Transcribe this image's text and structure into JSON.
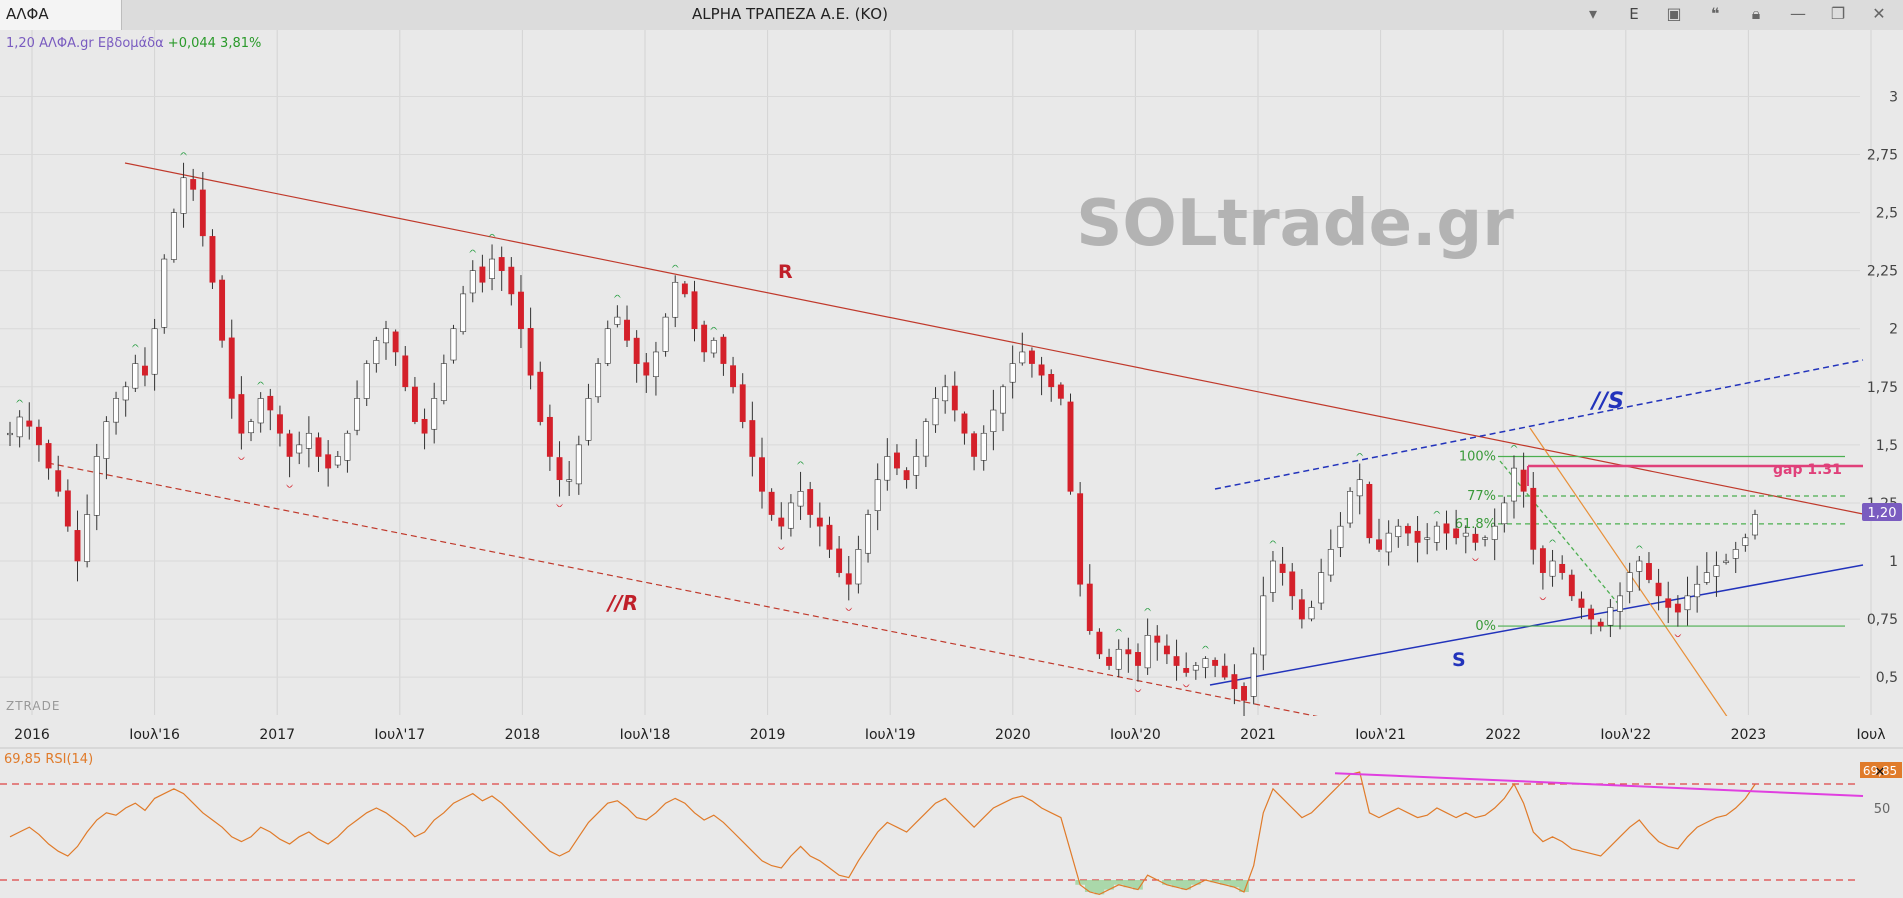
{
  "titlebar": {
    "symbol": "ΑΛΦΑ",
    "title": "ALPHA ΤΡΑΠΕΖΑ Α.Ε. (ΚΟ)",
    "lang_button": "E"
  },
  "colors": {
    "background": "#e9e9e9",
    "up": "#ffffff",
    "down": "#d4202a",
    "resistance": "#c0392b",
    "support": "#2233bb",
    "fib": "#4caf50",
    "gap": "#e0407a",
    "rsi": "#e07b2a",
    "rsi_trend": "#e040e0"
  },
  "chart_data": [
    {
      "type": "candlestick",
      "header": {
        "price": "1,20",
        "source": "ΑΛΦΑ.gr",
        "period": "Εβδομάδα",
        "change": "+0,044",
        "change_pct": "3,81%"
      },
      "watermark": "SOLtrade.gr",
      "branding": "ZTRADE",
      "x_ticks": [
        "2016",
        "Ιουλ'16",
        "2017",
        "Ιουλ'17",
        "2018",
        "Ιουλ'18",
        "2019",
        "Ιουλ'19",
        "2020",
        "Ιουλ'20",
        "2021",
        "Ιουλ'21",
        "2022",
        "Ιουλ'22",
        "2023",
        "Ιουλ"
      ],
      "y_ticks": [
        "3",
        "2,75",
        "2,5",
        "2,25",
        "2",
        "1,75",
        "1,5",
        "1,25",
        "1",
        "0,75",
        "0,5"
      ],
      "y_tick_values": [
        3,
        2.75,
        2.5,
        2.25,
        2,
        1.75,
        1.5,
        1.25,
        1,
        0.75,
        0.5
      ],
      "ylim": [
        0.35,
        3.2
      ],
      "last_price_label": "1,20",
      "close_series": [
        1.55,
        1.62,
        1.58,
        1.5,
        1.4,
        1.3,
        1.15,
        1.0,
        1.2,
        1.45,
        1.6,
        1.7,
        1.75,
        1.85,
        1.8,
        2.0,
        2.3,
        2.5,
        2.65,
        2.6,
        2.4,
        2.2,
        1.95,
        1.7,
        1.55,
        1.6,
        1.7,
        1.65,
        1.55,
        1.45,
        1.5,
        1.55,
        1.45,
        1.4,
        1.45,
        1.55,
        1.7,
        1.85,
        1.95,
        2.0,
        1.9,
        1.75,
        1.6,
        1.55,
        1.7,
        1.85,
        2.0,
        2.15,
        2.25,
        2.2,
        2.3,
        2.25,
        2.15,
        2.0,
        1.8,
        1.6,
        1.45,
        1.35,
        1.35,
        1.5,
        1.7,
        1.85,
        2.0,
        2.05,
        1.95,
        1.85,
        1.8,
        1.9,
        2.05,
        2.2,
        2.15,
        2.0,
        1.9,
        1.95,
        1.85,
        1.75,
        1.6,
        1.45,
        1.3,
        1.2,
        1.15,
        1.25,
        1.3,
        1.2,
        1.15,
        1.05,
        0.95,
        0.9,
        1.05,
        1.2,
        1.35,
        1.45,
        1.4,
        1.35,
        1.45,
        1.6,
        1.7,
        1.75,
        1.65,
        1.55,
        1.45,
        1.55,
        1.65,
        1.75,
        1.85,
        1.9,
        1.85,
        1.8,
        1.75,
        1.7,
        1.3,
        0.9,
        0.7,
        0.6,
        0.55,
        0.62,
        0.6,
        0.55,
        0.68,
        0.65,
        0.6,
        0.55,
        0.52,
        0.55,
        0.58,
        0.55,
        0.5,
        0.45,
        0.4,
        0.6,
        0.85,
        1.0,
        0.95,
        0.85,
        0.75,
        0.8,
        0.95,
        1.05,
        1.15,
        1.3,
        1.35,
        1.1,
        1.05,
        1.12,
        1.15,
        1.12,
        1.08,
        1.1,
        1.15,
        1.12,
        1.1,
        1.12,
        1.08,
        1.1,
        1.15,
        1.25,
        1.4,
        1.3,
        1.05,
        0.95,
        1.0,
        0.95,
        0.85,
        0.8,
        0.75,
        0.72,
        0.8,
        0.85,
        0.95,
        1.0,
        0.92,
        0.85,
        0.8,
        0.78,
        0.85,
        0.9,
        0.95,
        0.98,
        1.0,
        1.05,
        1.1,
        1.2
      ],
      "annotations": [
        {
          "text": "R",
          "kind": "resistance"
        },
        {
          "text": "//R",
          "kind": "resistance-parallel"
        },
        {
          "text": "S",
          "kind": "support"
        },
        {
          "text": "//S",
          "kind": "support-parallel"
        },
        {
          "text": "gap 1.31",
          "kind": "gap",
          "value": 1.31
        }
      ],
      "fib_levels": [
        {
          "label": "100%",
          "value": 1.45
        },
        {
          "label": "77%",
          "value": 1.28
        },
        {
          "label": "61.8%",
          "value": 1.16
        },
        {
          "label": "0%",
          "value": 0.72
        }
      ]
    },
    {
      "type": "line",
      "title": "69,85 RSI(14)",
      "value_label": "69,85",
      "y_ticks": [
        "50"
      ],
      "levels": [
        70,
        30
      ],
      "ylim": [
        25,
        75
      ],
      "series": [
        {
          "name": "RSI(14)",
          "values": [
            48,
            50,
            52,
            49,
            45,
            42,
            40,
            44,
            50,
            55,
            58,
            57,
            60,
            62,
            59,
            64,
            66,
            68,
            66,
            62,
            58,
            55,
            52,
            48,
            46,
            48,
            52,
            50,
            47,
            45,
            48,
            50,
            47,
            45,
            48,
            52,
            55,
            58,
            60,
            58,
            55,
            52,
            48,
            50,
            55,
            58,
            62,
            64,
            66,
            63,
            65,
            62,
            58,
            54,
            50,
            46,
            42,
            40,
            42,
            48,
            54,
            58,
            62,
            63,
            60,
            56,
            55,
            58,
            62,
            64,
            62,
            58,
            55,
            57,
            54,
            50,
            46,
            42,
            38,
            36,
            35,
            40,
            44,
            40,
            38,
            35,
            32,
            31,
            38,
            44,
            50,
            54,
            52,
            50,
            54,
            58,
            62,
            64,
            60,
            56,
            52,
            56,
            60,
            62,
            64,
            65,
            63,
            60,
            58,
            56,
            42,
            28,
            25,
            24,
            26,
            28,
            27,
            26,
            32,
            30,
            28,
            27,
            26,
            28,
            30,
            29,
            28,
            27,
            25,
            36,
            58,
            68,
            64,
            60,
            56,
            58,
            62,
            66,
            70,
            74,
            75,
            58,
            56,
            58,
            60,
            58,
            56,
            57,
            60,
            58,
            56,
            58,
            56,
            57,
            60,
            64,
            70,
            62,
            50,
            46,
            48,
            46,
            43,
            42,
            41,
            40,
            44,
            48,
            52,
            55,
            50,
            46,
            44,
            43,
            48,
            52,
            54,
            56,
            57,
            60,
            64,
            69.85
          ]
        }
      ]
    }
  ]
}
